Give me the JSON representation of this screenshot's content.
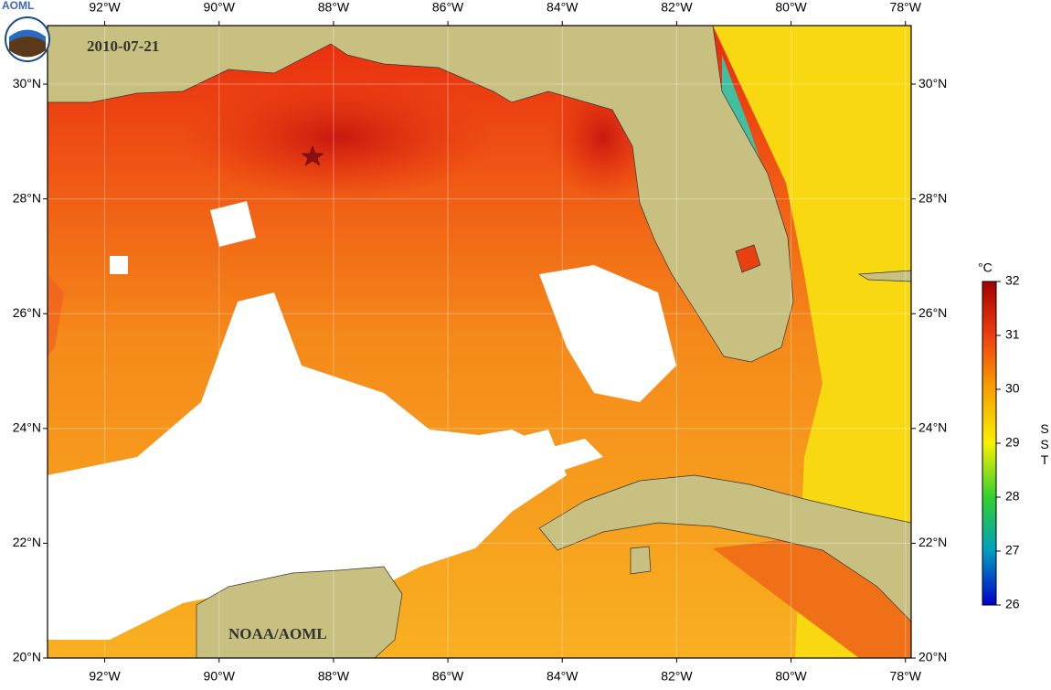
{
  "header": {
    "logo": "AOML",
    "date": "2010-07-21",
    "credit": "NOAA/AOML"
  },
  "map": {
    "lon_ticks": [
      {
        "value": -92,
        "label": "92°W"
      },
      {
        "value": -90,
        "label": "90°W"
      },
      {
        "value": -88,
        "label": "88°W"
      },
      {
        "value": -86,
        "label": "86°W"
      },
      {
        "value": -84,
        "label": "84°W"
      },
      {
        "value": -82,
        "label": "82°W"
      },
      {
        "value": -80,
        "label": "80°W"
      },
      {
        "value": -78,
        "label": "78°W"
      }
    ],
    "lat_ticks": [
      {
        "value": 30,
        "label": "30°N"
      },
      {
        "value": 28,
        "label": "28°N"
      },
      {
        "value": 26,
        "label": "26°N"
      },
      {
        "value": 24,
        "label": "24°N"
      },
      {
        "value": 22,
        "label": "22°N"
      },
      {
        "value": 20,
        "label": "20°N"
      }
    ]
  },
  "colorbar": {
    "unit": "°C",
    "title": "SST",
    "range": [
      26,
      32
    ],
    "ticks": [
      26,
      27,
      28,
      29,
      30,
      31,
      32
    ]
  }
}
